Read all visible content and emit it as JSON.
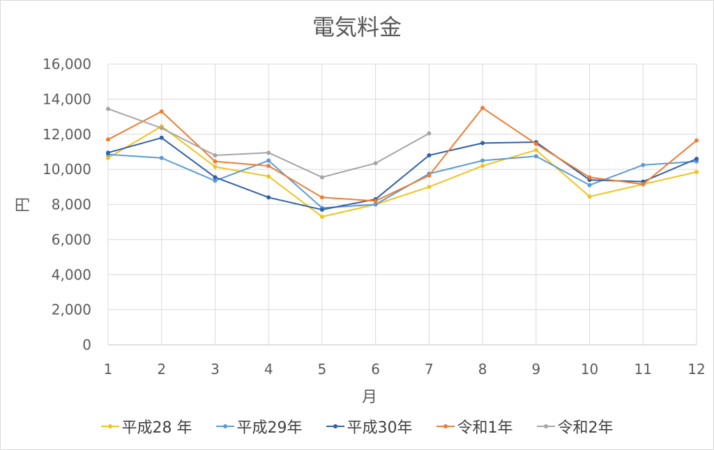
{
  "chart_data": {
    "type": "line",
    "title": "電気料金",
    "xlabel": "月",
    "ylabel": "円",
    "x": [
      1,
      2,
      3,
      4,
      5,
      6,
      7,
      8,
      9,
      10,
      11,
      12
    ],
    "x_tick_labels": [
      "1",
      "2",
      "3",
      "4",
      "5",
      "6",
      "7",
      "8",
      "9",
      "10",
      "11",
      "12"
    ],
    "ylim": [
      0,
      16000
    ],
    "y_ticks": [
      0,
      2000,
      4000,
      6000,
      8000,
      10000,
      12000,
      14000,
      16000
    ],
    "y_tick_labels": [
      "0",
      "2,000",
      "4,000",
      "6,000",
      "8,000",
      "10,000",
      "12,000",
      "14,000",
      "16,000"
    ],
    "grid": true,
    "legend_position": "bottom",
    "series": [
      {
        "name": "平成28 年",
        "color": "#f2c31a",
        "values": [
          10650,
          12450,
          10150,
          9600,
          7300,
          8000,
          9000,
          10200,
          11100,
          8450,
          9150,
          9850
        ]
      },
      {
        "name": "平成29年",
        "color": "#5b9bd5",
        "values": [
          10850,
          10650,
          9350,
          10500,
          7800,
          8000,
          9750,
          10500,
          10750,
          9100,
          10250,
          10450
        ]
      },
      {
        "name": "平成30年",
        "color": "#2f5fab",
        "values": [
          10950,
          11800,
          9550,
          8400,
          7700,
          8300,
          10800,
          11500,
          11550,
          9400,
          9300,
          10600
        ]
      },
      {
        "name": "令和1年",
        "color": "#ed7d31",
        "values": [
          11700,
          13300,
          10450,
          10200,
          8400,
          8200,
          9650,
          13500,
          11450,
          9550,
          9150,
          11650
        ]
      },
      {
        "name": "令和2年",
        "color": "#a5a5a5",
        "values": [
          13450,
          12350,
          10800,
          10950,
          9550,
          10350,
          12050,
          null,
          null,
          null,
          null,
          null
        ]
      }
    ]
  }
}
